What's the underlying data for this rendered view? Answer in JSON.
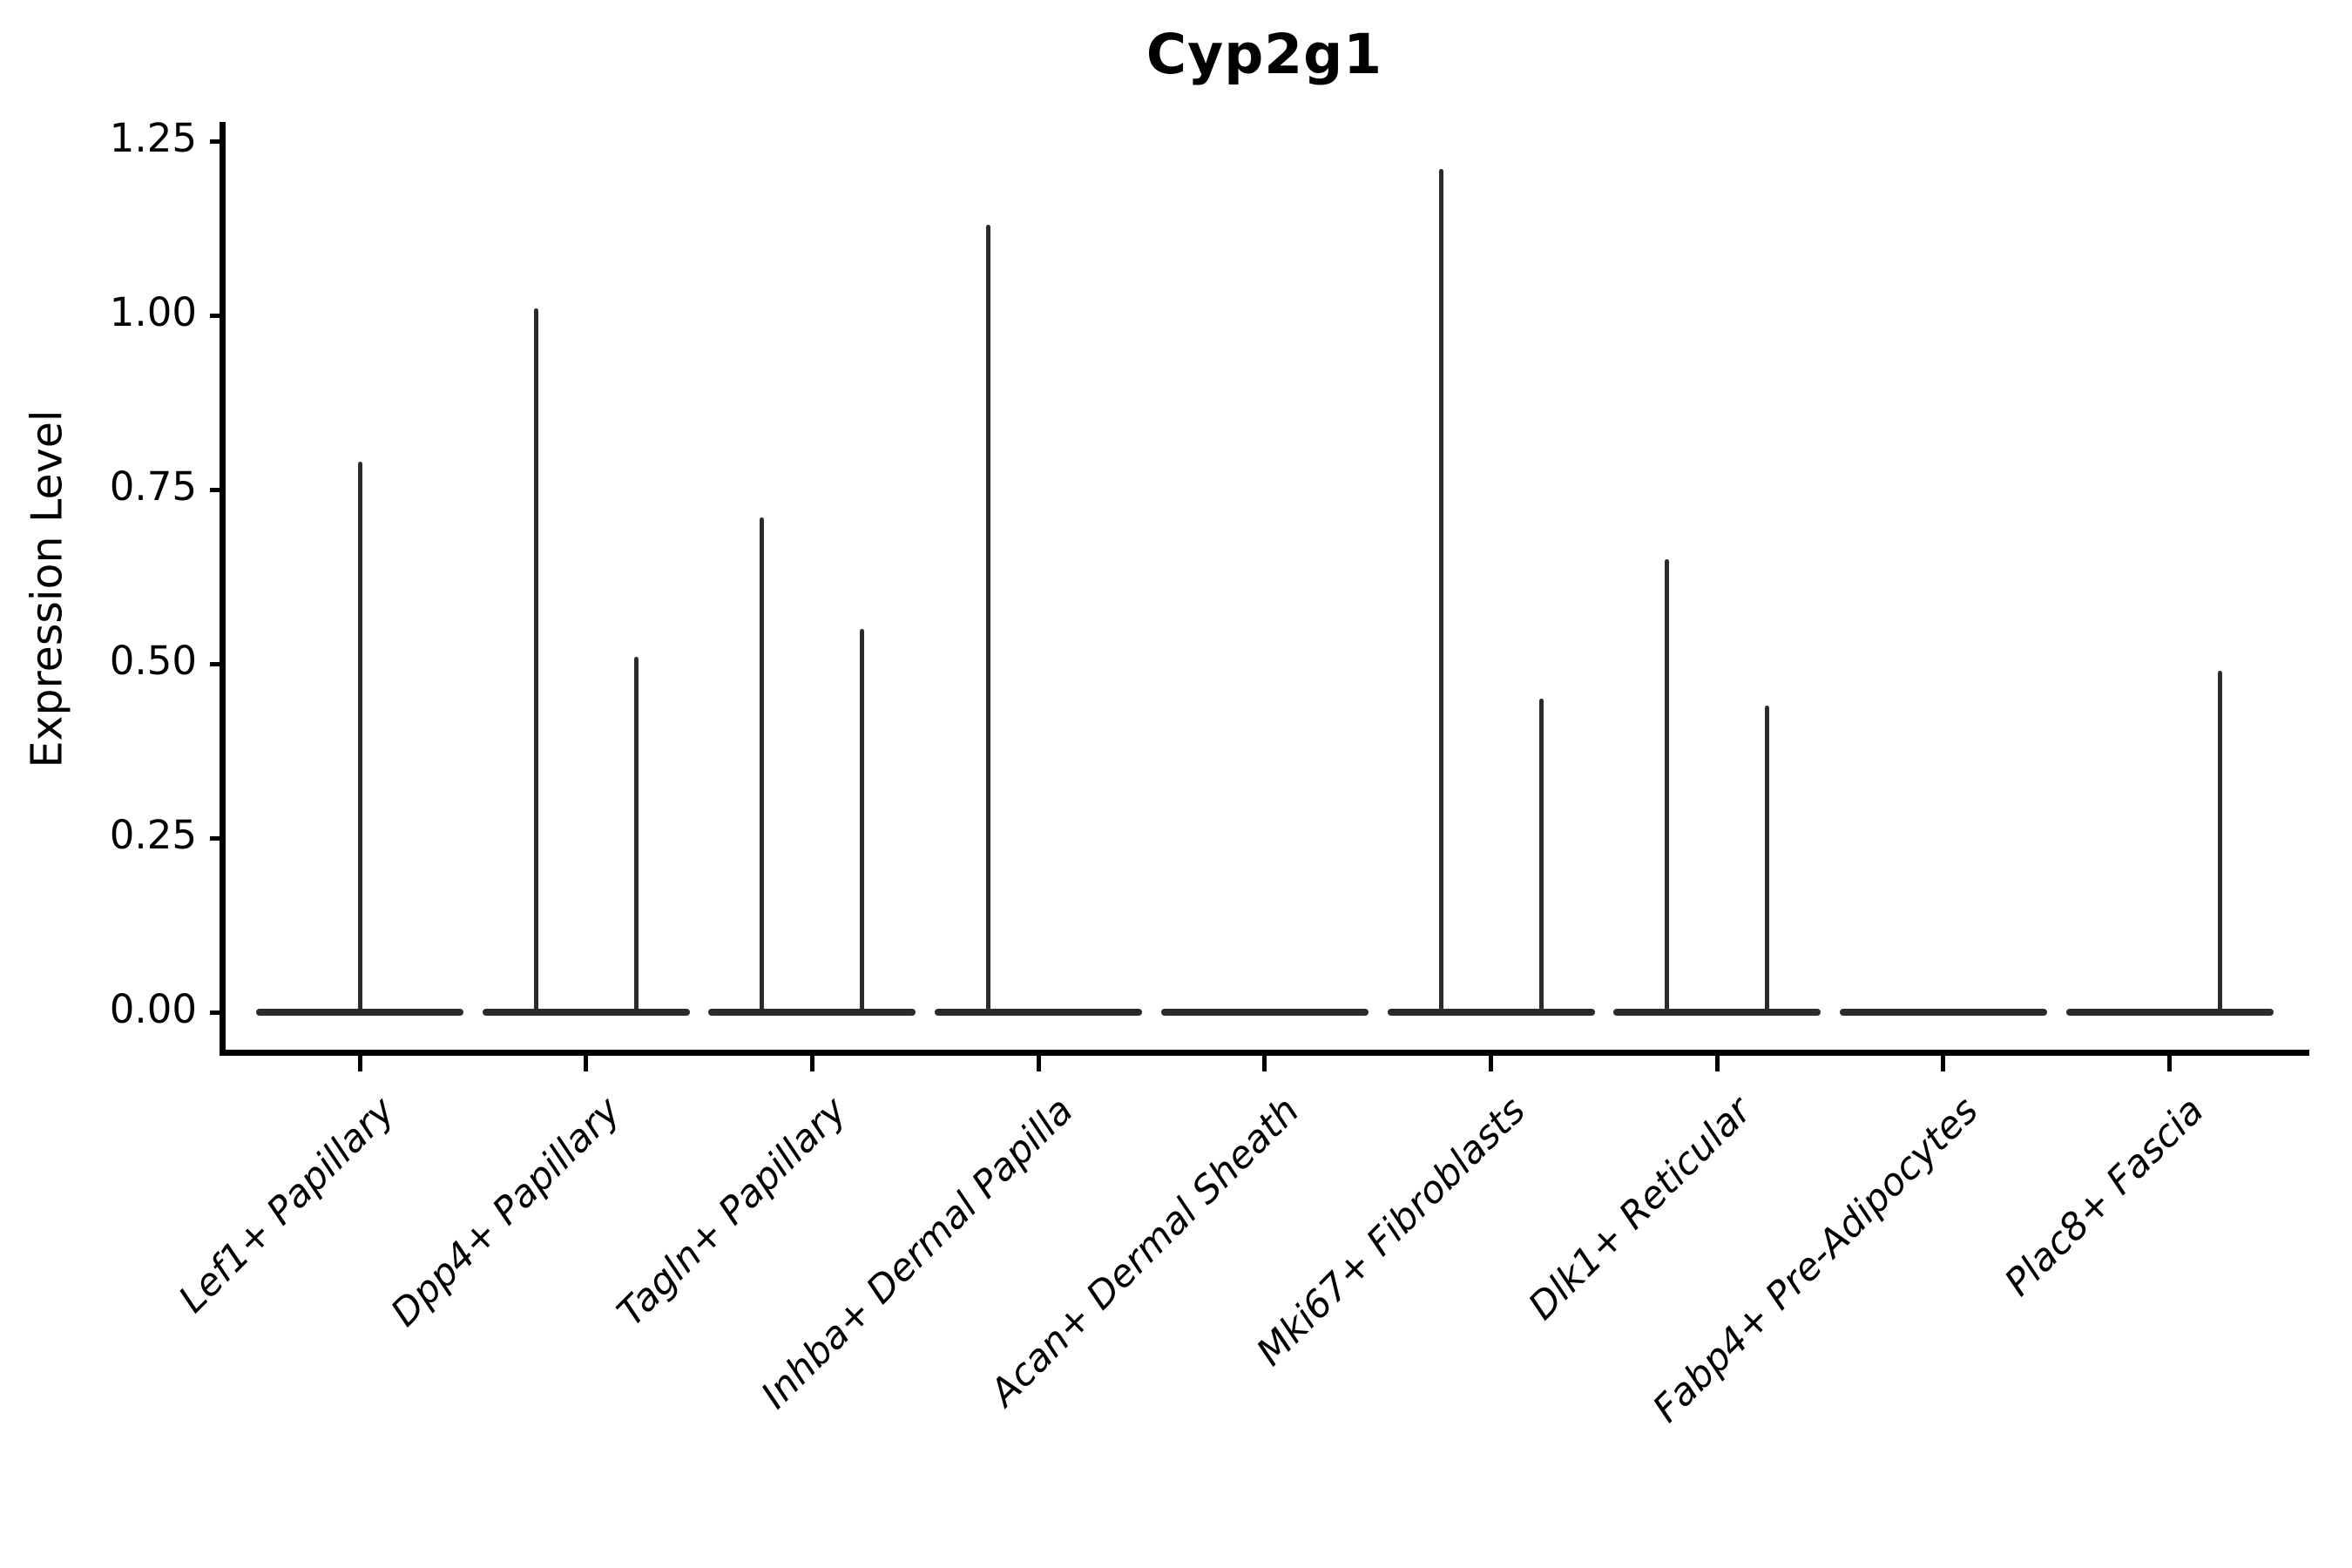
{
  "title": "Cyp2g1",
  "y_axis": {
    "label": "Expression Level",
    "tick_labels": [
      "1.25",
      "1.00",
      "0.75",
      "0.50",
      "0.25",
      "0.00"
    ],
    "tick_values": [
      1.25,
      1.0,
      0.75,
      0.5,
      0.25,
      0.0
    ]
  },
  "chart_data": {
    "type": "violin",
    "title": "Cyp2g1",
    "xlabel": "",
    "ylabel": "Expression Level",
    "ylim": [
      0,
      1.25
    ],
    "grid": false,
    "legend": "none",
    "categories": [
      "Lef1+ Papillary",
      "Dpp4+ Papillary",
      "Tagln+ Papillary",
      "Inhba+ Dermal Papilla",
      "Acan+ Dermal Sheath",
      "Mki67+ Fibroblasts",
      "Dlk1+ Reticular",
      "Fabp4+ Pre-Adipocytes",
      "Plac8+ Fascia"
    ],
    "violins": [
      {
        "category": "Lef1+ Papillary",
        "baseline_at_zero": true,
        "spikes": [
          {
            "offset": 0,
            "max": 0.79
          }
        ]
      },
      {
        "category": "Dpp4+ Papillary",
        "baseline_at_zero": true,
        "spikes": [
          {
            "offset": -1,
            "max": 1.01
          },
          {
            "offset": 1,
            "max": 0.51
          }
        ]
      },
      {
        "category": "Tagln+ Papillary",
        "baseline_at_zero": true,
        "spikes": [
          {
            "offset": -1,
            "max": 0.71
          },
          {
            "offset": 1,
            "max": 0.55
          }
        ]
      },
      {
        "category": "Inhba+ Dermal Papilla",
        "baseline_at_zero": true,
        "spikes": [
          {
            "offset": -1,
            "max": 1.13
          }
        ]
      },
      {
        "category": "Acan+ Dermal Sheath",
        "baseline_at_zero": true,
        "spikes": []
      },
      {
        "category": "Mki67+ Fibroblasts",
        "baseline_at_zero": true,
        "spikes": [
          {
            "offset": -1,
            "max": 1.21
          },
          {
            "offset": 1,
            "max": 0.45
          }
        ]
      },
      {
        "category": "Dlk1+ Reticular",
        "baseline_at_zero": true,
        "spikes": [
          {
            "offset": -1,
            "max": 0.65
          },
          {
            "offset": 1,
            "max": 0.44
          }
        ]
      },
      {
        "category": "Fabp4+ Pre-Adipocytes",
        "baseline_at_zero": true,
        "spikes": []
      },
      {
        "category": "Plac8+ Fascia",
        "baseline_at_zero": true,
        "spikes": [
          {
            "offset": 1,
            "max": 0.49
          }
        ]
      }
    ]
  },
  "colors": {
    "violin_line": "#2b2b2b",
    "axis": "#000000",
    "text": "#000000",
    "background": "#ffffff"
  }
}
